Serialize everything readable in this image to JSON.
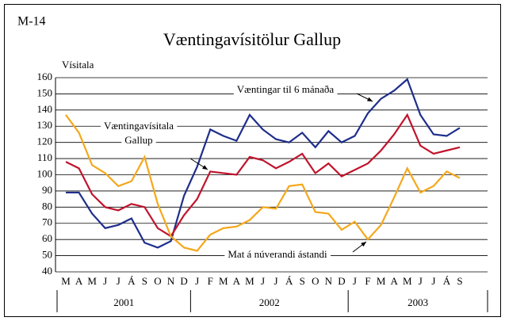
{
  "chart_data": {
    "type": "line",
    "label": "M-14",
    "title": "Væntingavísitölur Gallup",
    "y_label": "Vísitala",
    "categories": [
      "M",
      "A",
      "M",
      "J",
      "J",
      "Á",
      "S",
      "O",
      "N",
      "D",
      "J",
      "F",
      "M",
      "A",
      "M",
      "J",
      "J",
      "Á",
      "S",
      "O",
      "N",
      "D",
      "J",
      "F",
      "M",
      "A",
      "M",
      "J",
      "J",
      "Á",
      "S"
    ],
    "x_groups": [
      "2001",
      "2002",
      "2003"
    ],
    "series": [
      {
        "color": "#1f2e8c",
        "values": [
          89,
          89,
          76,
          67,
          69,
          73,
          58,
          55,
          59,
          87,
          105,
          128,
          124,
          121,
          137,
          128,
          122,
          120,
          126,
          117,
          127,
          120,
          124,
          138,
          147,
          152,
          159,
          137,
          125,
          124,
          129
        ]
      },
      {
        "color": "#c0142d",
        "values": [
          108,
          104,
          88,
          80,
          78,
          82,
          80,
          67,
          62,
          75,
          85,
          102,
          101,
          100,
          111,
          109,
          104,
          108,
          113,
          101,
          107,
          99,
          103,
          107,
          115,
          125,
          137,
          118,
          113,
          115,
          117
        ]
      },
      {
        "color": "#f5a81c",
        "values": [
          137,
          126,
          106,
          101,
          93,
          96,
          111,
          82,
          62,
          55,
          53,
          63,
          67,
          68,
          72,
          80,
          79,
          93,
          94,
          77,
          76,
          66,
          71,
          60,
          69,
          86,
          104,
          89,
          93,
          102,
          98
        ]
      }
    ],
    "annotations": [
      {
        "lines": [
          "Væntingar til 6 mánaða"
        ]
      },
      {
        "lines": [
          "Væntingavísitala",
          "Gallup"
        ]
      },
      {
        "lines": [
          "Mat á núverandi ástandi"
        ]
      }
    ],
    "ylim": [
      40,
      160
    ],
    "yticks": [
      40,
      50,
      60,
      70,
      80,
      90,
      100,
      110,
      120,
      130,
      140,
      150,
      160
    ],
    "grid": true
  }
}
